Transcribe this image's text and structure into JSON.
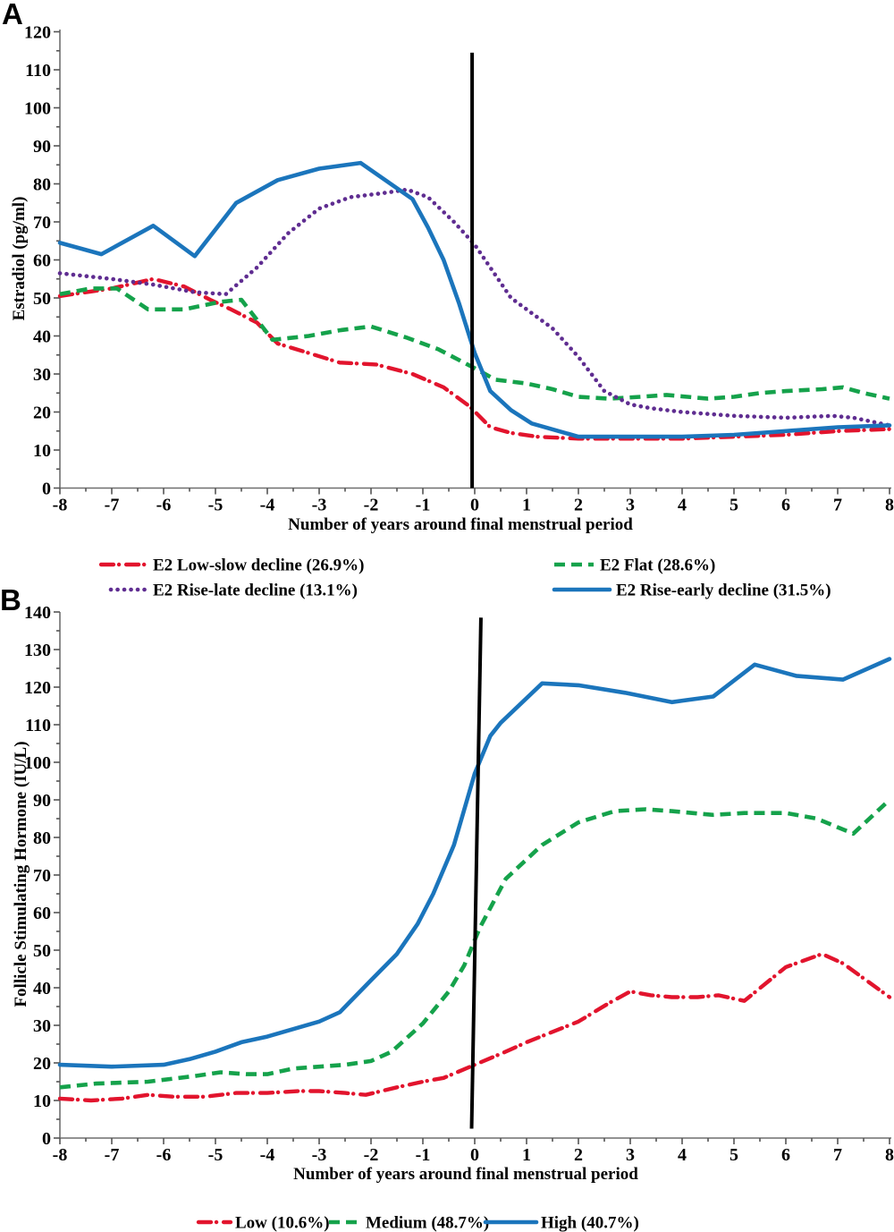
{
  "figure": {
    "background": "#ffffff"
  },
  "chart_data": [
    {
      "panel_label": "A",
      "type": "line",
      "xlabel": "Number of years around final menstrual period",
      "ylabel": "Estradiol (pg/ml)",
      "xlim": [
        -8,
        8
      ],
      "ylim": [
        0,
        120
      ],
      "xticks": [
        -8,
        -7,
        -6,
        -5,
        -4,
        -3,
        -2,
        -1,
        0,
        1,
        2,
        3,
        4,
        5,
        6,
        7,
        8
      ],
      "yticks": [
        0,
        10,
        20,
        30,
        40,
        50,
        60,
        70,
        80,
        90,
        100,
        110,
        120
      ],
      "x_minor_step": 0.5,
      "y_minor_step": 5,
      "grid": false,
      "legend_position": "below",
      "vline": {
        "color": "#000000",
        "x_top": -0.05,
        "x_bottom": -0.05,
        "y_top": 114.5,
        "y_bottom": 0
      },
      "series": [
        {
          "name": "E2 Low-slow decline (26.9%)",
          "color": "#e2142d",
          "style": "dashdot",
          "points": [
            [
              -8,
              50.5
            ],
            [
              -7,
              52.5
            ],
            [
              -6.2,
              55
            ],
            [
              -5.6,
              53
            ],
            [
              -5.1,
              49.5
            ],
            [
              -4.7,
              47
            ],
            [
              -4.2,
              43.5
            ],
            [
              -3.8,
              38
            ],
            [
              -3.2,
              35.5
            ],
            [
              -2.6,
              33
            ],
            [
              -1.9,
              32.5
            ],
            [
              -1.2,
              30
            ],
            [
              -0.6,
              26.5
            ],
            [
              -0.1,
              21.5
            ],
            [
              0.3,
              16
            ],
            [
              0.7,
              14.5
            ],
            [
              1.2,
              13.5
            ],
            [
              2,
              13
            ],
            [
              3,
              13
            ],
            [
              4,
              13
            ],
            [
              5,
              13.5
            ],
            [
              6,
              14
            ],
            [
              7,
              15
            ],
            [
              8,
              15.5
            ]
          ]
        },
        {
          "name": "E2 Flat (28.6%)",
          "color": "#15a24b",
          "style": "dashed",
          "points": [
            [
              -8,
              51
            ],
            [
              -7.4,
              52.5
            ],
            [
              -6.9,
              52.5
            ],
            [
              -6.3,
              47
            ],
            [
              -5.6,
              47
            ],
            [
              -4.9,
              49
            ],
            [
              -4.5,
              49.5
            ],
            [
              -3.9,
              39
            ],
            [
              -3.2,
              40
            ],
            [
              -2.6,
              41.5
            ],
            [
              -2,
              42.5
            ],
            [
              -1.3,
              39.5
            ],
            [
              -0.7,
              36.5
            ],
            [
              0,
              31.5
            ],
            [
              0.4,
              28.5
            ],
            [
              1,
              27.5
            ],
            [
              1.5,
              26
            ],
            [
              2,
              24
            ],
            [
              2.6,
              23.5
            ],
            [
              3.2,
              24
            ],
            [
              3.7,
              24.5
            ],
            [
              4.1,
              24
            ],
            [
              4.5,
              23.5
            ],
            [
              5,
              24
            ],
            [
              5.5,
              25
            ],
            [
              6,
              25.5
            ],
            [
              6.7,
              26
            ],
            [
              7.1,
              26.5
            ],
            [
              7.5,
              25
            ],
            [
              8,
              23.5
            ]
          ]
        },
        {
          "name": "E2 Rise-late decline (13.1%)",
          "color": "#5f2d91",
          "style": "dotted",
          "points": [
            [
              -8,
              56.5
            ],
            [
              -7,
              55
            ],
            [
              -6.2,
              53.5
            ],
            [
              -5.4,
              51.5
            ],
            [
              -4.8,
              51
            ],
            [
              -4.2,
              58
            ],
            [
              -3.6,
              67
            ],
            [
              -3,
              73.5
            ],
            [
              -2.4,
              76.5
            ],
            [
              -1.8,
              77.5
            ],
            [
              -1.3,
              78.5
            ],
            [
              -0.9,
              76.5
            ],
            [
              -0.4,
              70
            ],
            [
              0,
              64
            ],
            [
              0.7,
              50
            ],
            [
              1.1,
              46
            ],
            [
              1.5,
              42
            ],
            [
              2,
              34.5
            ],
            [
              2.5,
              25.5
            ],
            [
              3,
              22
            ],
            [
              3.4,
              21
            ],
            [
              4,
              20
            ],
            [
              5,
              19
            ],
            [
              6,
              18.5
            ],
            [
              6.9,
              19
            ],
            [
              7.3,
              18.5
            ],
            [
              8,
              16.5
            ]
          ]
        },
        {
          "name": "E2 Rise-early decline (31.5%)",
          "color": "#1b75bc",
          "style": "solid",
          "points": [
            [
              -8,
              64.5
            ],
            [
              -7.2,
              61.5
            ],
            [
              -6.2,
              69
            ],
            [
              -5.4,
              61
            ],
            [
              -4.6,
              75
            ],
            [
              -3.8,
              81
            ],
            [
              -3,
              84
            ],
            [
              -2.2,
              85.5
            ],
            [
              -1.2,
              76
            ],
            [
              -0.9,
              68.5
            ],
            [
              -0.6,
              60
            ],
            [
              -0.3,
              48.5
            ],
            [
              0,
              35.5
            ],
            [
              0.3,
              25.5
            ],
            [
              0.7,
              20.5
            ],
            [
              1.1,
              17
            ],
            [
              2,
              13.5
            ],
            [
              3,
              13.5
            ],
            [
              4,
              13.5
            ],
            [
              5,
              14
            ],
            [
              6,
              15
            ],
            [
              7,
              16
            ],
            [
              8,
              16.5
            ]
          ]
        }
      ]
    },
    {
      "panel_label": "B",
      "type": "line",
      "xlabel": "Number of years around final menstrual period",
      "ylabel": "Follicle Stimulating Hormone (IU/L)",
      "xlim": [
        -8,
        8
      ],
      "ylim": [
        0,
        140
      ],
      "xticks": [
        -8,
        -7,
        -6,
        -5,
        -4,
        -3,
        -2,
        -1,
        0,
        1,
        2,
        3,
        4,
        5,
        6,
        7,
        8
      ],
      "yticks": [
        0,
        10,
        20,
        30,
        40,
        50,
        60,
        70,
        80,
        90,
        100,
        110,
        120,
        130,
        140
      ],
      "x_minor_step": 0.5,
      "y_minor_step": 5,
      "grid": false,
      "legend_position": "below",
      "vline": {
        "color": "#000000",
        "x_top": 0.12,
        "x_bottom": -0.06,
        "y_top": 138.5,
        "y_bottom": 2.5
      },
      "series": [
        {
          "name": "Low (10.6%)",
          "color": "#e2142d",
          "style": "dashdot",
          "points": [
            [
              -8,
              10.5
            ],
            [
              -7.4,
              10
            ],
            [
              -6.8,
              10.5
            ],
            [
              -6.3,
              11.5
            ],
            [
              -5.8,
              11
            ],
            [
              -5.2,
              11
            ],
            [
              -4.6,
              12
            ],
            [
              -4,
              12
            ],
            [
              -3.4,
              12.5
            ],
            [
              -3,
              12.5
            ],
            [
              -2.5,
              12
            ],
            [
              -2.1,
              11.5
            ],
            [
              -1.5,
              13.5
            ],
            [
              -1,
              15
            ],
            [
              -0.6,
              16
            ],
            [
              0,
              19.5
            ],
            [
              0.6,
              23
            ],
            [
              1,
              25.5
            ],
            [
              2,
              31
            ],
            [
              2.6,
              36
            ],
            [
              3,
              39
            ],
            [
              3.4,
              38
            ],
            [
              3.8,
              37.5
            ],
            [
              4.3,
              37.5
            ],
            [
              4.7,
              38
            ],
            [
              5.2,
              36.5
            ],
            [
              6,
              45.5
            ],
            [
              6.7,
              49
            ],
            [
              7.1,
              46.5
            ],
            [
              7.6,
              41.5
            ],
            [
              8,
              37.5
            ]
          ]
        },
        {
          "name": "Medium (48.7%)",
          "color": "#15a24b",
          "style": "dashed",
          "points": [
            [
              -8,
              13.5
            ],
            [
              -7.3,
              14.5
            ],
            [
              -6.3,
              15
            ],
            [
              -5.4,
              16.5
            ],
            [
              -4.9,
              17.5
            ],
            [
              -4.4,
              17
            ],
            [
              -4,
              17
            ],
            [
              -3.5,
              18.5
            ],
            [
              -3,
              19
            ],
            [
              -2.5,
              19.5
            ],
            [
              -2,
              20.5
            ],
            [
              -1.6,
              23
            ],
            [
              -1,
              30.5
            ],
            [
              -0.5,
              39
            ],
            [
              -0.2,
              46
            ],
            [
              0.1,
              56
            ],
            [
              0.6,
              69
            ],
            [
              1.3,
              78
            ],
            [
              2,
              84
            ],
            [
              2.7,
              87
            ],
            [
              3.3,
              87.5
            ],
            [
              3.8,
              87
            ],
            [
              4.6,
              86
            ],
            [
              5.2,
              86.5
            ],
            [
              6,
              86.5
            ],
            [
              6.6,
              85
            ],
            [
              7.3,
              81
            ],
            [
              8,
              90
            ]
          ]
        },
        {
          "name": "High (40.7%)",
          "color": "#1b75bc",
          "style": "solid",
          "points": [
            [
              -8,
              19.5
            ],
            [
              -7,
              19
            ],
            [
              -6,
              19.5
            ],
            [
              -5.5,
              21
            ],
            [
              -5,
              23
            ],
            [
              -4.5,
              25.5
            ],
            [
              -4,
              27
            ],
            [
              -3.5,
              29
            ],
            [
              -3,
              31
            ],
            [
              -2.6,
              33.5
            ],
            [
              -2,
              42
            ],
            [
              -1.5,
              49
            ],
            [
              -1.1,
              57
            ],
            [
              -0.8,
              65
            ],
            [
              -0.4,
              78
            ],
            [
              0,
              97
            ],
            [
              0.3,
              107
            ],
            [
              0.5,
              110.5
            ],
            [
              1.3,
              121
            ],
            [
              2,
              120.5
            ],
            [
              2.9,
              118.5
            ],
            [
              3.8,
              116
            ],
            [
              4.6,
              117.5
            ],
            [
              5.4,
              126
            ],
            [
              6.2,
              123
            ],
            [
              7.1,
              122
            ],
            [
              8,
              127.5
            ]
          ]
        }
      ]
    }
  ]
}
